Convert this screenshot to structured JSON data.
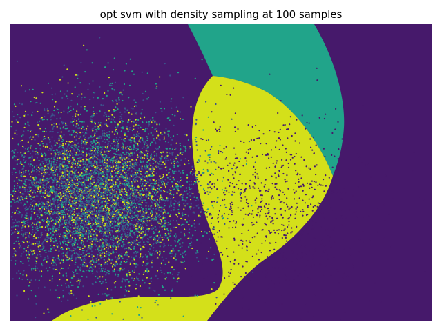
{
  "chart_data": {
    "type": "scatter",
    "title": "opt svm with density sampling at 100 samples",
    "xlabel": "",
    "ylabel": "",
    "axes_visible": false,
    "grid": false,
    "legend": "none",
    "colormap": "viridis",
    "decision_regions": [
      {
        "class": 0,
        "color": "#46196b"
      },
      {
        "class": 1,
        "color": "#21a48a"
      },
      {
        "class": 2,
        "color": "#d4e01a"
      }
    ],
    "series": [
      {
        "class": 0,
        "color": "#46196b",
        "cluster": "right-center",
        "count": 900
      },
      {
        "class": 1,
        "color": "#21a48a",
        "cluster": "left",
        "count": 2600
      },
      {
        "class": 2,
        "color": "#d4e01a",
        "cluster": "left",
        "count": 1400
      },
      {
        "class": 3,
        "color": "#3b528b",
        "cluster": "left",
        "count": 2600
      }
    ]
  }
}
